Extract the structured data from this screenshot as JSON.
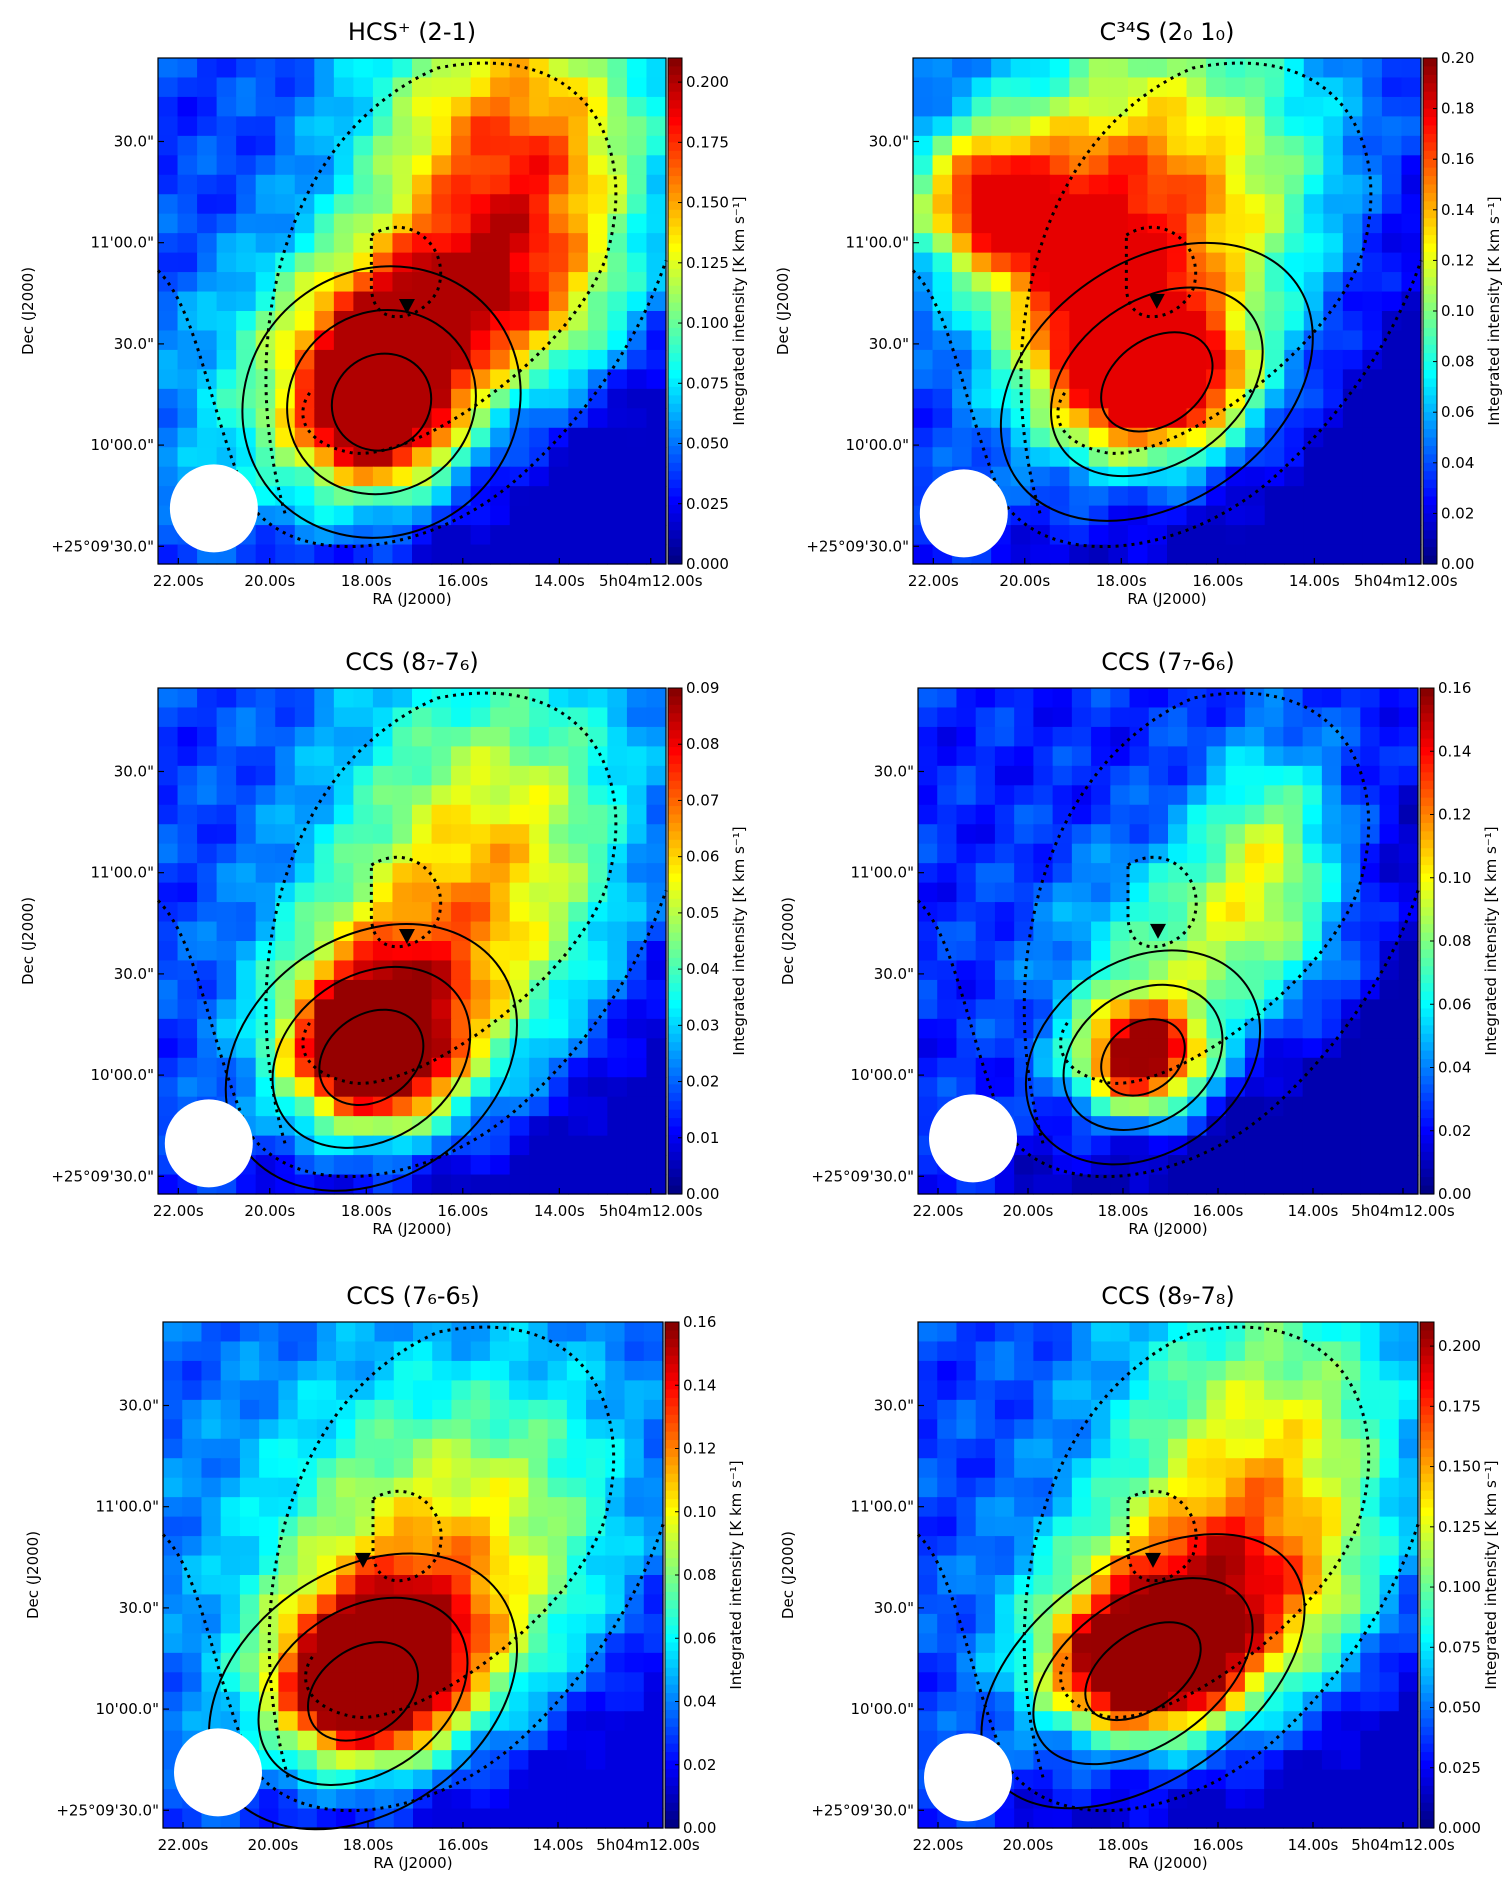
{
  "chart_data": [
    {
      "type": "heatmap",
      "title": "HCS⁺ (2-1)",
      "xlabel": "RA (J2000)",
      "ylabel": "Dec (J2000)",
      "colorbar_label": "Integrated intensity [K km s⁻¹]",
      "colorbar_ticks": [
        "0.000",
        "0.025",
        "0.050",
        "0.075",
        "0.100",
        "0.125",
        "0.150",
        "0.175",
        "0.200"
      ],
      "clim": [
        0,
        0.21
      ],
      "x_ticks": [
        "22.00s",
        "20.00s",
        "18.00s",
        "16.00s",
        "14.00s",
        "5h04m12.00s"
      ],
      "y_ticks": [
        "+25°09'30.0\"",
        "10'00.0\"",
        "30.0\"",
        "11'00.0\"",
        "30.0\""
      ],
      "peak_value": 0.2,
      "background_value": 0.05
    },
    {
      "type": "heatmap",
      "title": "C³⁴S (2₀ 1₀)",
      "xlabel": "RA (J2000)",
      "ylabel": "Dec (J2000)",
      "colorbar_label": "Integrated intensity [K km s⁻¹]",
      "colorbar_ticks": [
        "0.00",
        "0.02",
        "0.04",
        "0.06",
        "0.08",
        "0.10",
        "0.12",
        "0.14",
        "0.16",
        "0.18",
        "0.20"
      ],
      "clim": [
        0,
        0.2
      ],
      "x_ticks": [
        "22.00s",
        "20.00s",
        "18.00s",
        "16.00s",
        "14.00s",
        "5h04m12.00s"
      ],
      "y_ticks": [
        "+25°09'30.0\"",
        "10'00.0\"",
        "30.0\"",
        "11'00.0\"",
        "30.0\""
      ],
      "peak_value": 0.18,
      "background_value": 0.04
    },
    {
      "type": "heatmap",
      "title": "CCS (8₇-7₆)",
      "xlabel": "RA (J2000)",
      "ylabel": "Dec (J2000)",
      "colorbar_label": "Integrated intensity [K km s⁻¹]",
      "colorbar_ticks": [
        "0.00",
        "0.01",
        "0.02",
        "0.03",
        "0.04",
        "0.05",
        "0.06",
        "0.07",
        "0.08",
        "0.09"
      ],
      "clim": [
        0,
        0.09
      ],
      "x_ticks": [
        "22.00s",
        "20.00s",
        "18.00s",
        "16.00s",
        "14.00s",
        "5h04m12.00s"
      ],
      "y_ticks": [
        "+25°09'30.0\"",
        "10'00.0\"",
        "30.0\"",
        "11'00.0\"",
        "30.0\""
      ],
      "peak_value": 0.088,
      "background_value": 0.02
    },
    {
      "type": "heatmap",
      "title": "CCS (7₇-6₆)",
      "xlabel": "RA (J2000)",
      "ylabel": "Dec (J2000)",
      "colorbar_label": "Integrated intensity [K km s⁻¹]",
      "colorbar_ticks": [
        "0.00",
        "0.02",
        "0.04",
        "0.06",
        "0.08",
        "0.10",
        "0.12",
        "0.14",
        "0.16"
      ],
      "clim": [
        0,
        0.16
      ],
      "x_ticks": [
        "22.00s",
        "20.00s",
        "18.00s",
        "16.00s",
        "14.00s",
        "5h04m12.00s"
      ],
      "y_ticks": [
        "+25°09'30.0\"",
        "10'00.0\"",
        "30.0\"",
        "11'00.0\"",
        "30.0\""
      ],
      "peak_value": 0.155,
      "background_value": 0.025
    },
    {
      "type": "heatmap",
      "title": "CCS (7₆-6₅)",
      "xlabel": "RA (J2000)",
      "ylabel": "Dec (J2000)",
      "colorbar_label": "Integrated intensity [K km s⁻¹]",
      "colorbar_ticks": [
        "0.00",
        "0.02",
        "0.04",
        "0.06",
        "0.08",
        "0.10",
        "0.12",
        "0.14",
        "0.16"
      ],
      "clim": [
        0,
        0.16
      ],
      "x_ticks": [
        "22.00s",
        "20.00s",
        "18.00s",
        "16.00s",
        "14.00s",
        "5h04m12.00s"
      ],
      "y_ticks": [
        "+25°09'30.0\"",
        "10'00.0\"",
        "30.0\"",
        "11'00.0\"",
        "30.0\""
      ],
      "peak_value": 0.155,
      "background_value": 0.05
    },
    {
      "type": "heatmap",
      "title": "CCS (8₉-7₈)",
      "xlabel": "RA (J2000)",
      "ylabel": "Dec (J2000)",
      "colorbar_label": "Integrated intensity [K km s⁻¹]",
      "colorbar_ticks": [
        "0.000",
        "0.025",
        "0.050",
        "0.075",
        "0.100",
        "0.125",
        "0.150",
        "0.175",
        "0.200"
      ],
      "clim": [
        0,
        0.21
      ],
      "x_ticks": [
        "22.00s",
        "20.00s",
        "18.00s",
        "16.00s",
        "14.00s",
        "5h04m12.00s"
      ],
      "y_ticks": [
        "+25°09'30.0\"",
        "10'00.0\"",
        "30.0\"",
        "11'00.0\"",
        "30.0\""
      ],
      "peak_value": 0.205,
      "background_value": 0.05
    }
  ]
}
